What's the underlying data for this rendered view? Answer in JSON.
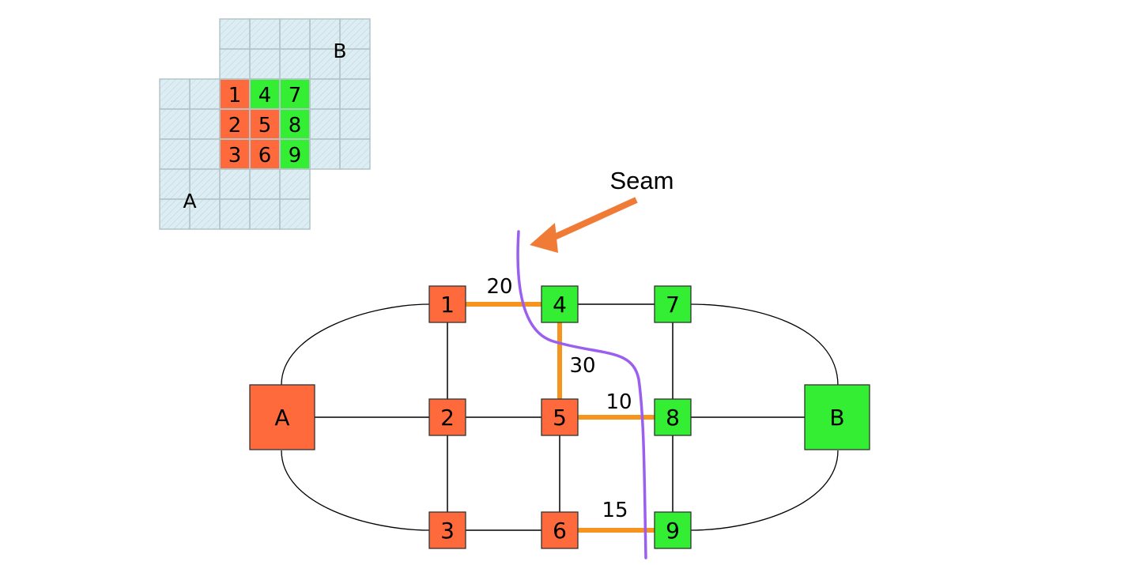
{
  "grid": {
    "label_a": "A",
    "label_b": "B",
    "cells": [
      {
        "text": "1",
        "region": "A"
      },
      {
        "text": "4",
        "region": "B"
      },
      {
        "text": "7",
        "region": "B"
      },
      {
        "text": "2",
        "region": "A"
      },
      {
        "text": "5",
        "region": "A"
      },
      {
        "text": "8",
        "region": "B"
      },
      {
        "text": "3",
        "region": "A"
      },
      {
        "text": "6",
        "region": "A"
      },
      {
        "text": "9",
        "region": "B"
      }
    ]
  },
  "seam_label": "Seam",
  "graph": {
    "nodes": [
      {
        "id": "A",
        "label": "A",
        "region": "A"
      },
      {
        "id": "B",
        "label": "B",
        "region": "B"
      },
      {
        "id": "1",
        "label": "1",
        "region": "A"
      },
      {
        "id": "2",
        "label": "2",
        "region": "A"
      },
      {
        "id": "3",
        "label": "3",
        "region": "A"
      },
      {
        "id": "4",
        "label": "4",
        "region": "B"
      },
      {
        "id": "5",
        "label": "5",
        "region": "A"
      },
      {
        "id": "6",
        "label": "6",
        "region": "A"
      },
      {
        "id": "7",
        "label": "7",
        "region": "B"
      },
      {
        "id": "8",
        "label": "8",
        "region": "B"
      },
      {
        "id": "9",
        "label": "9",
        "region": "B"
      }
    ],
    "edges": [
      {
        "from": "1",
        "to": "2",
        "cut": false
      },
      {
        "from": "2",
        "to": "3",
        "cut": false
      },
      {
        "from": "7",
        "to": "8",
        "cut": false
      },
      {
        "from": "8",
        "to": "9",
        "cut": false
      },
      {
        "from": "5",
        "to": "6",
        "cut": false
      },
      {
        "from": "4",
        "to": "7",
        "cut": false
      },
      {
        "from": "2",
        "to": "5",
        "cut": false
      },
      {
        "from": "3",
        "to": "6",
        "cut": false
      },
      {
        "from": "A",
        "to": "2",
        "cut": false
      },
      {
        "from": "8",
        "to": "B",
        "cut": false
      },
      {
        "from": "1",
        "to": "4",
        "cut": true,
        "weight": "20"
      },
      {
        "from": "4",
        "to": "5",
        "cut": true,
        "weight": "30"
      },
      {
        "from": "5",
        "to": "8",
        "cut": true,
        "weight": "10"
      },
      {
        "from": "6",
        "to": "9",
        "cut": true,
        "weight": "15"
      }
    ]
  },
  "colors": {
    "region_a": "#ff6a3d",
    "region_b": "#33ee33",
    "cut_edge": "#f7941d",
    "seam_line": "#9b5ff0",
    "seam_arrow": "#ef7b36",
    "grid_background": "#dceef3",
    "grid_line": "#b7c7cc",
    "edge": "#000000"
  }
}
